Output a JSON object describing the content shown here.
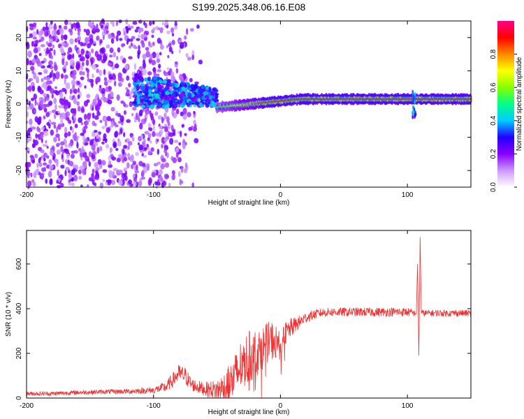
{
  "title": "S199.2025.348.06.16.E08",
  "chart_data": [
    {
      "type": "heatmap",
      "title": "S199.2025.348.06.16.E08",
      "xlabel": "Height of straight line (km)",
      "ylabel": "Frequency (Hz)",
      "xlim": [
        -200,
        150
      ],
      "ylim": [
        -25,
        25
      ],
      "x_ticks": [
        -200,
        -100,
        0,
        100
      ],
      "y_ticks": [
        -20,
        -10,
        0,
        10,
        20
      ],
      "colorbar": {
        "label": "Normalized spectral amplitude",
        "range": [
          0,
          1
        ],
        "ticks": [
          0.0,
          0.2,
          0.4,
          0.6,
          0.8
        ],
        "tick_labels": [
          "0.0",
          "0.2",
          "0.4",
          "0.6",
          "0.8"
        ],
        "colors": [
          "#ffffff",
          "#cc99ff",
          "#8800ff",
          "#2200ff",
          "#00ccff",
          "#00ff88",
          "#88ff00",
          "#ffff00",
          "#ff8800",
          "#ff0000",
          "#ff0088"
        ]
      },
      "features": {
        "noise_region_x": [
          -200,
          -60
        ],
        "turbulent_band": {
          "x": [
            -115,
            -50
          ],
          "center_hz": [
            4,
            2
          ],
          "spread_hz": 5
        },
        "carrier_line": {
          "x": [
            -50,
            150
          ],
          "freq_hz": [
            -1,
            1.5
          ],
          "peak_amplitude": 0.9
        },
        "disturbance_at_x": 105
      }
    },
    {
      "type": "line",
      "xlabel": "Height of straight line (km)",
      "ylabel": "SNR (10 * v/v)",
      "xlim": [
        -200,
        150
      ],
      "ylim": [
        0,
        750
      ],
      "x_ticks": [
        -200,
        -100,
        0,
        100
      ],
      "y_ticks": [
        0,
        200,
        400,
        600
      ],
      "color": "#ee3333",
      "series": [
        {
          "name": "SNR",
          "x": [
            -200,
            -180,
            -160,
            -140,
            -120,
            -100,
            -90,
            -80,
            -75,
            -70,
            -60,
            -50,
            -45,
            -40,
            -35,
            -30,
            -25,
            -20,
            -15,
            -10,
            -5,
            0,
            5,
            10,
            15,
            20,
            30,
            40,
            50,
            60,
            70,
            80,
            90,
            100,
            105,
            107,
            108,
            109,
            110,
            111,
            115,
            120,
            130,
            140,
            150
          ],
          "values": [
            20,
            20,
            25,
            28,
            30,
            35,
            50,
            110,
            100,
            60,
            40,
            35,
            45,
            60,
            100,
            160,
            180,
            200,
            220,
            250,
            260,
            230,
            300,
            320,
            340,
            360,
            380,
            385,
            385,
            385,
            385,
            385,
            385,
            385,
            380,
            380,
            600,
            190,
            720,
            380,
            380,
            380,
            380,
            380,
            380
          ],
          "noise_amplitude": [
            10,
            10,
            10,
            10,
            12,
            15,
            25,
            40,
            40,
            30,
            30,
            50,
            70,
            90,
            110,
            120,
            120,
            110,
            100,
            90,
            90,
            60,
            50,
            40,
            30,
            25,
            20,
            20,
            20,
            20,
            20,
            20,
            20,
            20,
            15,
            10,
            0,
            0,
            0,
            15,
            15,
            15,
            15,
            15,
            15
          ]
        }
      ]
    }
  ]
}
